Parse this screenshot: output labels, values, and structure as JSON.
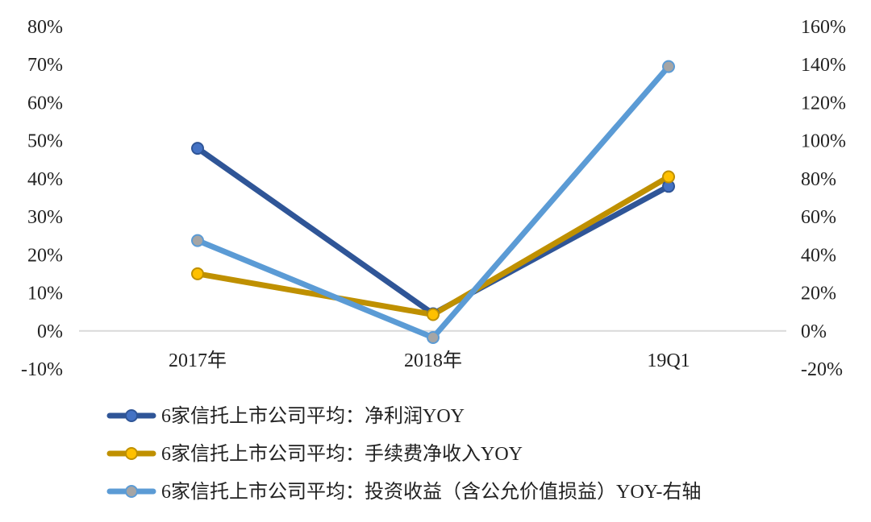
{
  "chart_data": {
    "type": "line",
    "categories": [
      "2017年",
      "2018年",
      "19Q1"
    ],
    "left_axis": {
      "ylim": [
        -10,
        80
      ],
      "ticks": [
        "-10%",
        "0%",
        "10%",
        "20%",
        "30%",
        "40%",
        "50%",
        "60%",
        "70%",
        "80%"
      ]
    },
    "right_axis": {
      "ylim": [
        -20,
        160
      ],
      "ticks": [
        "-20%",
        "0%",
        "20%",
        "40%",
        "60%",
        "80%",
        "100%",
        "120%",
        "140%",
        "160%"
      ]
    },
    "grid": false,
    "legend_position": "bottom",
    "series": [
      {
        "name": "6家信托上市公司平均：净利润YOY",
        "axis": "left",
        "values": [
          48,
          4.5,
          38
        ],
        "line_color": "#2F5597",
        "marker_color": "#4472C4"
      },
      {
        "name": "6家信托上市公司平均：手续费净收入YOY",
        "axis": "left",
        "values": [
          15,
          4.3,
          40.5
        ],
        "line_color": "#BF9000",
        "marker_color": "#FFC000"
      },
      {
        "name": "6家信托上市公司平均：投资收益（含公允价值损益）YOY-右轴",
        "axis": "right",
        "values": [
          47.5,
          -3.5,
          139
        ],
        "line_color": "#5B9BD5",
        "marker_color": "#A5A5A5"
      }
    ]
  }
}
